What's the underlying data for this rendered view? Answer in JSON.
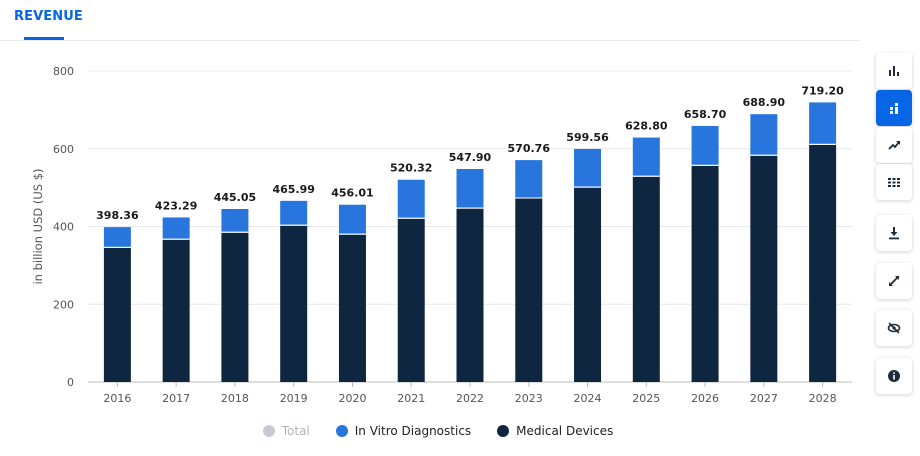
{
  "header": {
    "tab_label": "REVENUE"
  },
  "chart_data": {
    "type": "bar",
    "stacked": true,
    "categories": [
      "2016",
      "2017",
      "2018",
      "2019",
      "2020",
      "2021",
      "2022",
      "2023",
      "2024",
      "2025",
      "2026",
      "2027",
      "2028"
    ],
    "series": [
      {
        "name": "Medical Devices",
        "color": "#0f2640",
        "values": [
          345,
          366,
          384,
          402,
          379,
          420,
          446,
          472,
          500,
          528,
          556,
          582,
          610
        ]
      },
      {
        "name": "In Vitro Diagnostics",
        "color": "#2876dd",
        "values": [
          53.36,
          57.29,
          61.05,
          63.99,
          77.01,
          100.32,
          101.9,
          98.76,
          99.56,
          100.8,
          102.7,
          106.9,
          109.2
        ]
      }
    ],
    "totals": [
      "398.36",
      "423.29",
      "445.05",
      "465.99",
      "456.01",
      "520.32",
      "547.90",
      "570.76",
      "599.56",
      "628.80",
      "658.70",
      "688.90",
      "719.20"
    ],
    "ylabel": "in billion USD (US $)",
    "ylim": [
      0,
      800
    ],
    "yticks": [
      0,
      200,
      400,
      600,
      800
    ],
    "grid": true
  },
  "legend": {
    "total": {
      "label": "Total",
      "color": "#c8ccd1"
    },
    "ivd": {
      "label": "In Vitro Diagnostics",
      "color": "#2876dd"
    },
    "med": {
      "label": "Medical Devices",
      "color": "#0f2640"
    }
  },
  "toolbar": {
    "icons": [
      "bar-chart-icon",
      "stacked-bar-icon",
      "trend-line-icon",
      "table-grid-icon",
      "download-icon",
      "fullscreen-icon",
      "hide-icon",
      "info-icon"
    ]
  }
}
